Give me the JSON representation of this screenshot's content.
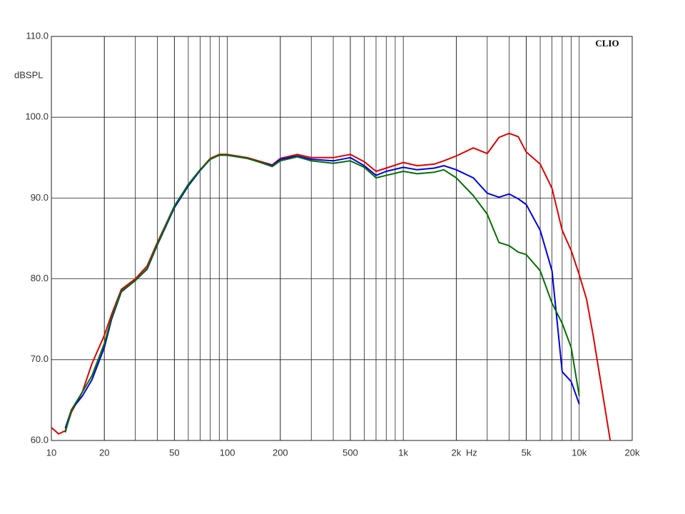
{
  "chart_data": {
    "type": "line",
    "y_label": "dBSPL",
    "x_unit": "Hz",
    "watermark": "CLIO",
    "log_x": true,
    "grid": true,
    "x": [
      10,
      11,
      12,
      13,
      15,
      17,
      20,
      22,
      25,
      30,
      35,
      40,
      50,
      60,
      70,
      80,
      90,
      100,
      130,
      150,
      180,
      200,
      250,
      300,
      400,
      500,
      600,
      700,
      800,
      1000,
      1200,
      1500,
      1700,
      2000,
      2500,
      3000,
      3500,
      4000,
      4500,
      5000,
      6000,
      7000,
      8000,
      9000,
      10000,
      11000,
      12000,
      15000
    ],
    "series": [
      {
        "name": "red",
        "color": "#e00000",
        "values": [
          61.6,
          60.8,
          61.2,
          63.5,
          66,
          69.5,
          73,
          75.6,
          78.7,
          80,
          81.6,
          84.5,
          89,
          91.6,
          93.5,
          94.9,
          95.4,
          95.4,
          95,
          94.6,
          94.1,
          94.9,
          95.4,
          95.0,
          95.0,
          95.4,
          94.5,
          93.3,
          93.7,
          94.4,
          94.0,
          94.2,
          94.6,
          95.2,
          96.2,
          95.5,
          97.5,
          98.0,
          97.6,
          95.7,
          94.2,
          91.2,
          86,
          83.5,
          80.5,
          77.5,
          73,
          60
        ]
      },
      {
        "name": "blue",
        "color": "#0000e0",
        "values": [
          null,
          null,
          61.5,
          63.8,
          65.5,
          67.5,
          71.5,
          75,
          78.4,
          79.8,
          81.2,
          84.2,
          88.8,
          91.5,
          93.4,
          94.8,
          95.3,
          95.3,
          94.9,
          94.5,
          94.0,
          94.8,
          95.2,
          94.8,
          94.6,
          95.0,
          94.0,
          92.8,
          93.3,
          93.8,
          93.5,
          93.7,
          94.0,
          93.5,
          92.5,
          90.6,
          90.1,
          90.5,
          89.9,
          89.2,
          86,
          81,
          68.5,
          67.3,
          64.5,
          null,
          null,
          null
        ]
      },
      {
        "name": "green",
        "color": "#007000",
        "values": [
          null,
          null,
          61,
          63.8,
          66,
          68,
          72,
          75.2,
          78.5,
          79.8,
          81.3,
          84.3,
          89,
          91.7,
          93.5,
          94.8,
          95.3,
          95.3,
          94.9,
          94.5,
          93.9,
          94.6,
          95.1,
          94.6,
          94.3,
          94.6,
          93.8,
          92.5,
          92.8,
          93.3,
          93.0,
          93.2,
          93.5,
          92.5,
          90.3,
          88,
          84.5,
          84.1,
          83.3,
          83.0,
          81,
          77,
          74.5,
          71.5,
          65.5,
          null,
          null,
          null
        ]
      }
    ],
    "xlim": [
      10,
      20000
    ],
    "xticks": [
      10,
      20,
      50,
      100,
      200,
      500,
      {
        "value": 1000,
        "label": "1k"
      },
      {
        "value": 2000,
        "label": "2k"
      },
      {
        "value": 5000,
        "label": "5k"
      },
      {
        "value": 10000,
        "label": "10k"
      },
      {
        "value": 20000,
        "label": "20k"
      }
    ],
    "ylim": [
      60,
      110
    ],
    "yticks": [
      {
        "value": 60,
        "label": "60.0"
      },
      {
        "value": 70,
        "label": "70.0"
      },
      {
        "value": 80,
        "label": "80.0"
      },
      {
        "value": 90,
        "label": "90.0"
      },
      {
        "value": 100,
        "label": "100.0"
      },
      {
        "value": 110,
        "label": "110.0"
      }
    ]
  }
}
